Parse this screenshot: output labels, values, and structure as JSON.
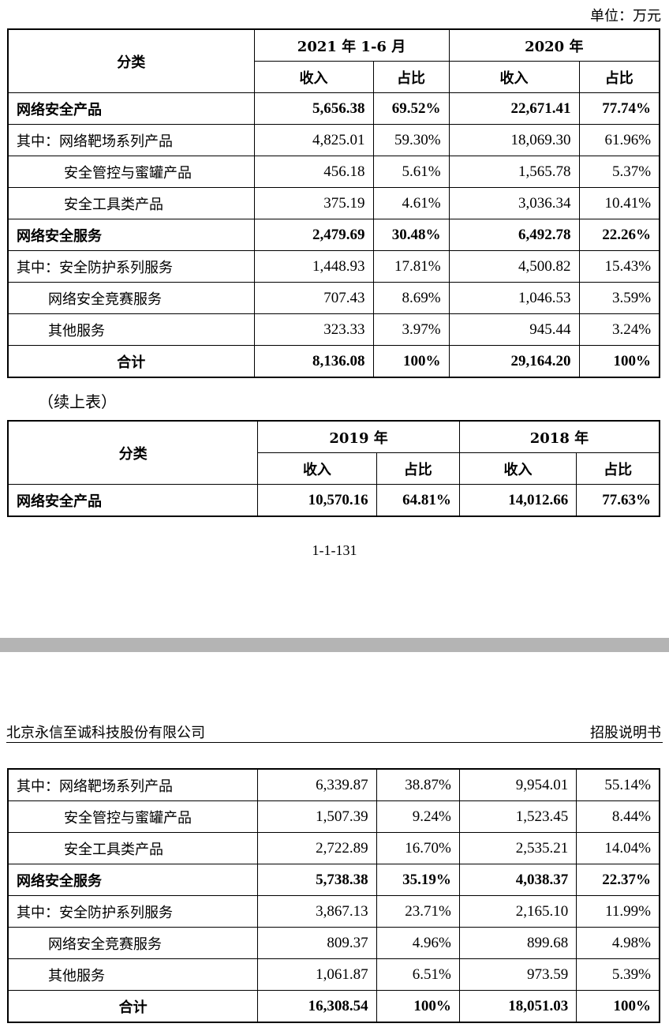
{
  "unit": "单位：万元",
  "continued": "（续上表）",
  "page_number": "1-1-131",
  "header": {
    "company": "北京永信至诚科技股份有限公司",
    "doc": "招股说明书"
  },
  "table1": {
    "category_header": "分类",
    "period1": "2021 年 1-6 月",
    "period2": "2020 年",
    "sub": [
      "收入",
      "占比",
      "收入",
      "占比"
    ],
    "rows": [
      {
        "label": "网络安全产品",
        "v": [
          "5,656.38",
          "69.52%",
          "22,671.41",
          "77.74%"
        ]
      },
      {
        "label": "其中：网络靶场系列产品",
        "v": [
          "4,825.01",
          "59.30%",
          "18,069.30",
          "61.96%"
        ]
      },
      {
        "label": "安全管控与蜜罐产品",
        "v": [
          "456.18",
          "5.61%",
          "1,565.78",
          "5.37%"
        ]
      },
      {
        "label": "安全工具类产品",
        "v": [
          "375.19",
          "4.61%",
          "3,036.34",
          "10.41%"
        ]
      },
      {
        "label": "网络安全服务",
        "v": [
          "2,479.69",
          "30.48%",
          "6,492.78",
          "22.26%"
        ]
      },
      {
        "label": "其中：安全防护系列服务",
        "v": [
          "1,448.93",
          "17.81%",
          "4,500.82",
          "15.43%"
        ]
      },
      {
        "label": "网络安全竞赛服务",
        "v": [
          "707.43",
          "8.69%",
          "1,046.53",
          "3.59%"
        ]
      },
      {
        "label": "其他服务",
        "v": [
          "323.33",
          "3.97%",
          "945.44",
          "3.24%"
        ]
      },
      {
        "label": "合计",
        "v": [
          "8,136.08",
          "100%",
          "29,164.20",
          "100%"
        ]
      }
    ]
  },
  "table2": {
    "category_header": "分类",
    "period1": "2019 年",
    "period2": "2018 年",
    "sub": [
      "收入",
      "占比",
      "收入",
      "占比"
    ],
    "rows": [
      {
        "label": "网络安全产品",
        "v": [
          "10,570.16",
          "64.81%",
          "14,012.66",
          "77.63%"
        ]
      }
    ]
  },
  "table3": {
    "rows": [
      {
        "label": "其中：网络靶场系列产品",
        "v": [
          "6,339.87",
          "38.87%",
          "9,954.01",
          "55.14%"
        ]
      },
      {
        "label": "安全管控与蜜罐产品",
        "v": [
          "1,507.39",
          "9.24%",
          "1,523.45",
          "8.44%"
        ]
      },
      {
        "label": "安全工具类产品",
        "v": [
          "2,722.89",
          "16.70%",
          "2,535.21",
          "14.04%"
        ]
      },
      {
        "label": "网络安全服务",
        "v": [
          "5,738.38",
          "35.19%",
          "4,038.37",
          "22.37%"
        ]
      },
      {
        "label": "其中：安全防护系列服务",
        "v": [
          "3,867.13",
          "23.71%",
          "2,165.10",
          "11.99%"
        ]
      },
      {
        "label": "网络安全竞赛服务",
        "v": [
          "809.37",
          "4.96%",
          "899.68",
          "4.98%"
        ]
      },
      {
        "label": "其他服务",
        "v": [
          "1,061.87",
          "6.51%",
          "973.59",
          "5.39%"
        ]
      },
      {
        "label": "合计",
        "v": [
          "16,308.54",
          "100%",
          "18,051.03",
          "100%"
        ]
      }
    ]
  }
}
